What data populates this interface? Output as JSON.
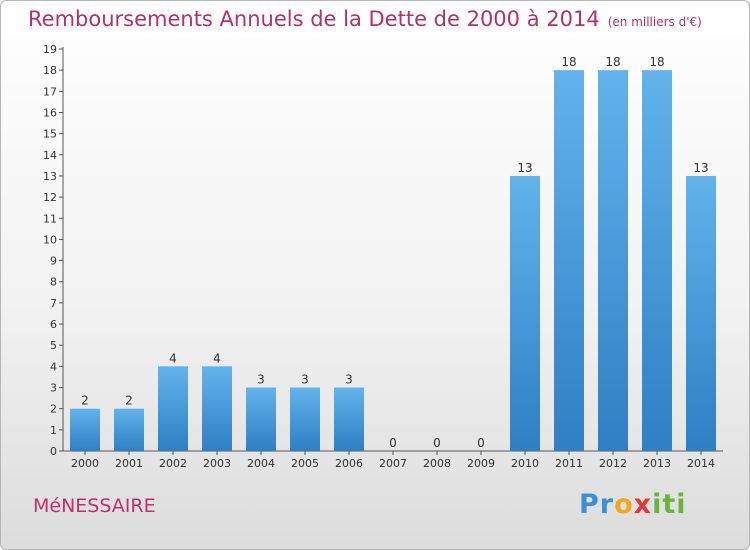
{
  "title": "Remboursements Annuels de la Dette de 2000 à 2014",
  "unit": "(en milliers d'€)",
  "place": "MéNESSAIRE",
  "logo": {
    "p": "Pr",
    "o": "o",
    "x": "x",
    "i": "iti"
  },
  "colors": {
    "bar_top": "#62b3ec",
    "bar_bottom": "#2e7fc4",
    "title": "#b5306a"
  },
  "chart_data": {
    "type": "bar",
    "categories": [
      "2000",
      "2001",
      "2002",
      "2003",
      "2004",
      "2005",
      "2006",
      "2007",
      "2008",
      "2009",
      "2010",
      "2011",
      "2012",
      "2013",
      "2014"
    ],
    "values": [
      2,
      2,
      4,
      4,
      3,
      3,
      3,
      0,
      0,
      0,
      13,
      18,
      18,
      18,
      13
    ],
    "title": "Remboursements Annuels de la Dette de 2000 à 2014",
    "ylim": [
      0,
      19
    ],
    "yticks": [
      0,
      1,
      2,
      3,
      4,
      5,
      6,
      7,
      8,
      9,
      10,
      11,
      12,
      13,
      14,
      15,
      16,
      17,
      18,
      19
    ],
    "grid": false
  }
}
